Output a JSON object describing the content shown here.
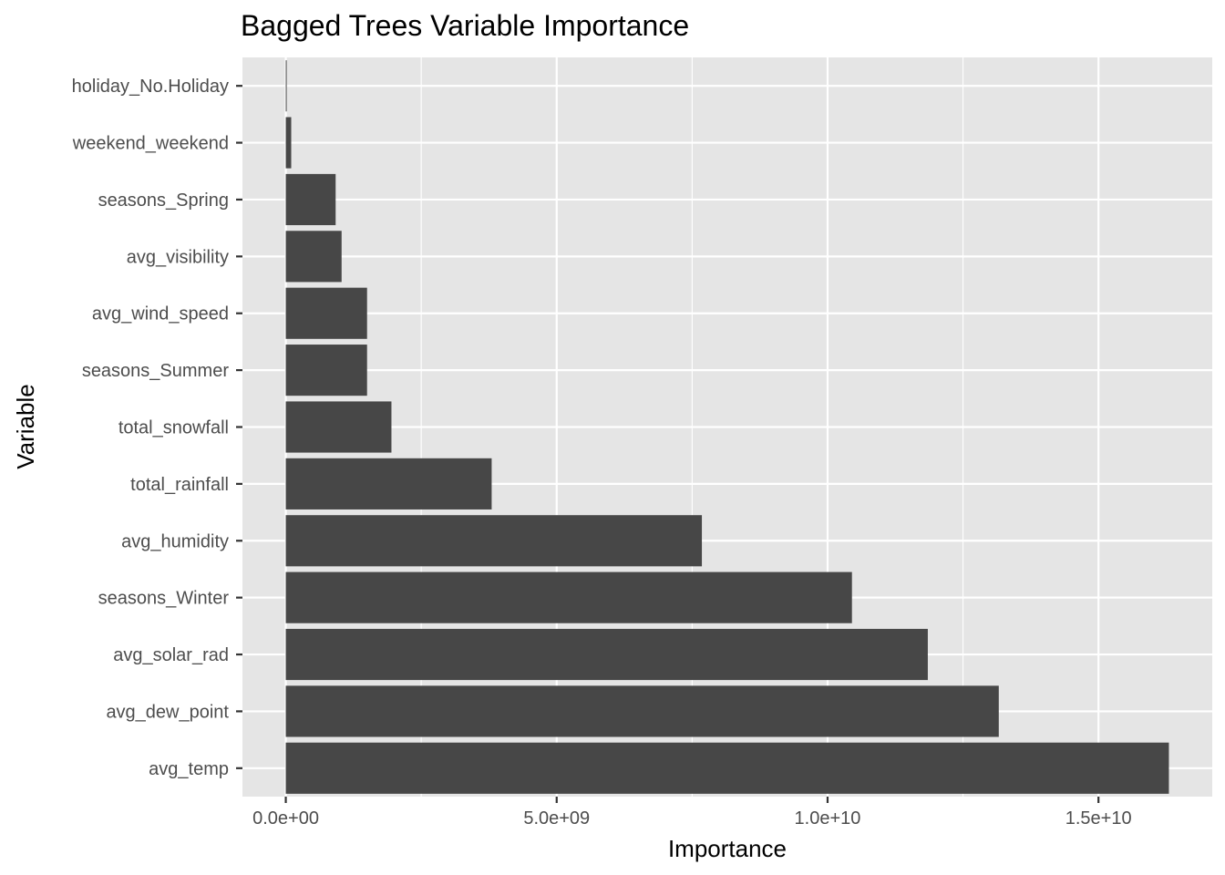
{
  "chart_data": {
    "type": "bar",
    "orientation": "horizontal",
    "title": "Bagged Trees Variable Importance",
    "xlabel": "Importance",
    "ylabel": "Variable",
    "categories": [
      "avg_temp",
      "avg_dew_point",
      "avg_solar_rad",
      "seasons_Winter",
      "avg_humidity",
      "total_rainfall",
      "total_snowfall",
      "seasons_Summer",
      "avg_wind_speed",
      "avg_visibility",
      "seasons_Spring",
      "weekend_weekend",
      "holiday_No.Holiday"
    ],
    "values": [
      16300000000,
      13160000000,
      11850000000,
      10450000000,
      7680000000,
      3800000000,
      1950000000,
      1500000000,
      1500000000,
      1030000000,
      920000000,
      100000000,
      10000000
    ],
    "xlim": [
      -800000000,
      17100000000
    ],
    "x_ticks": [
      0,
      5000000000,
      10000000000,
      15000000000
    ],
    "x_tick_labels": [
      "0.0e+00",
      "5.0e+09",
      "1.0e+10",
      "1.5e+10"
    ],
    "grid": true,
    "colors": {
      "bar": "#474747",
      "panel": "#e5e5e5",
      "grid": "#ffffff"
    }
  }
}
